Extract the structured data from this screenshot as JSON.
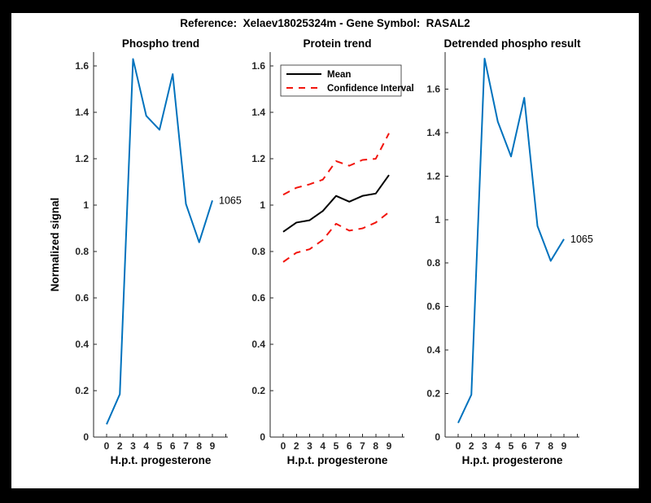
{
  "window": {
    "title": "Reference:  Xelaev18025324m - Gene Symbol:  RASAL2"
  },
  "colors": {
    "blue": "#0072BD",
    "red": "#F2150D",
    "black": "#000000",
    "axis": "#262626",
    "figure_bg": "#FFFFFF",
    "frame_bg": "#000000"
  },
  "chart_data": [
    {
      "type": "line",
      "title": "Phospho trend",
      "xlabel": "H.p.t. progesterone",
      "ylabel": "Normalized signal",
      "x": [
        0,
        2,
        3,
        4,
        5,
        6,
        7,
        8,
        9
      ],
      "x_tick_labels": [
        "0",
        "2",
        "3",
        "4",
        "5",
        "6",
        "7",
        "8",
        "9"
      ],
      "y_tick_labels": [
        "0",
        "0.2",
        "0.4",
        "0.6",
        "0.8",
        "1",
        "1.2",
        "1.4",
        "1.6"
      ],
      "ylim": [
        0,
        1.66
      ],
      "grid": false,
      "legend": null,
      "series": [
        {
          "name": "Phospho signal",
          "color": "blue",
          "style": "solid",
          "values": [
            0.055,
            0.185,
            1.63,
            1.385,
            1.325,
            1.565,
            1.005,
            0.84,
            1.02
          ]
        }
      ],
      "annotation": {
        "text": "1065"
      }
    },
    {
      "type": "line",
      "title": "Protein trend",
      "xlabel": "H.p.t. progesterone",
      "ylabel": "",
      "x": [
        0,
        2,
        3,
        4,
        5,
        6,
        7,
        8,
        9
      ],
      "x_tick_labels": [
        "0",
        "2",
        "3",
        "4",
        "5",
        "6",
        "7",
        "8",
        "9"
      ],
      "y_tick_labels": [
        "0",
        "0.2",
        "0.4",
        "0.6",
        "0.8",
        "1",
        "1.2",
        "1.4",
        "1.6"
      ],
      "ylim": [
        0,
        1.66
      ],
      "grid": false,
      "legend": {
        "position": "top-left",
        "entries": [
          {
            "label": "Mean",
            "color": "black",
            "style": "solid"
          },
          {
            "label": "Confidence Interval",
            "color": "red",
            "style": "dashed"
          }
        ]
      },
      "series": [
        {
          "name": "Mean",
          "color": "black",
          "style": "solid",
          "values": [
            0.885,
            0.925,
            0.935,
            0.975,
            1.04,
            1.015,
            1.04,
            1.05,
            1.13
          ]
        },
        {
          "name": "Confidence Interval upper",
          "color": "red",
          "style": "dashed",
          "values": [
            1.045,
            1.075,
            1.09,
            1.11,
            1.19,
            1.17,
            1.195,
            1.2,
            1.31
          ]
        },
        {
          "name": "Confidence Interval lower",
          "color": "red",
          "style": "dashed",
          "values": [
            0.755,
            0.795,
            0.81,
            0.85,
            0.92,
            0.89,
            0.9,
            0.925,
            0.97
          ]
        }
      ],
      "annotation": null
    },
    {
      "type": "line",
      "title": "Detrended phospho result",
      "xlabel": "H.p.t. progesterone",
      "ylabel": "",
      "x": [
        0,
        2,
        3,
        4,
        5,
        6,
        7,
        8,
        9
      ],
      "x_tick_labels": [
        "0",
        "2",
        "3",
        "4",
        "5",
        "6",
        "7",
        "8",
        "9"
      ],
      "y_tick_labels": [
        "0",
        "0.2",
        "0.4",
        "0.6",
        "0.8",
        "1",
        "1.2",
        "1.4",
        "1.6"
      ],
      "ylim": [
        0,
        1.77
      ],
      "grid": false,
      "legend": null,
      "series": [
        {
          "name": "Detrended phospho signal",
          "color": "blue",
          "style": "solid",
          "values": [
            0.065,
            0.195,
            1.74,
            1.45,
            1.29,
            1.56,
            0.97,
            0.81,
            0.91
          ]
        }
      ],
      "annotation": {
        "text": "1065"
      }
    }
  ]
}
